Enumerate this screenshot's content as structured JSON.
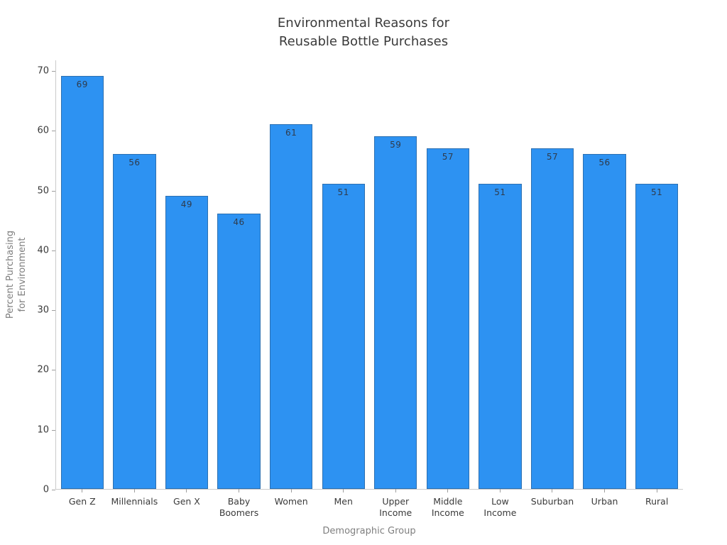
{
  "chart_data": {
    "type": "bar",
    "title": "Environmental Reasons for\nReusable Bottle Purchases",
    "xlabel": "Demographic Group",
    "ylabel": "Percent Purchasing\nfor Environment",
    "categories": [
      "Gen Z",
      "Millennials",
      "Gen X",
      "Baby Boomers",
      "Women",
      "Men",
      "Upper Income",
      "Middle Income",
      "Low Income",
      "Suburban",
      "Urban",
      "Rural"
    ],
    "values": [
      69,
      56,
      49,
      46,
      61,
      51,
      59,
      57,
      51,
      57,
      56,
      51
    ],
    "ylim": [
      0,
      70
    ],
    "yticks": [
      0,
      10,
      20,
      30,
      40,
      50,
      60,
      70
    ],
    "grid": false,
    "legend_position": "none",
    "bar_color": "#2d92f2",
    "bar_edge_color": "#2c3e50",
    "value_label_color": "#2f3b4c",
    "axis_color": "#cbcbcb",
    "tick_label_color": "#3a3a3a",
    "axis_title_color": "#7f7f7f",
    "title_color": "#3a3a3a"
  }
}
